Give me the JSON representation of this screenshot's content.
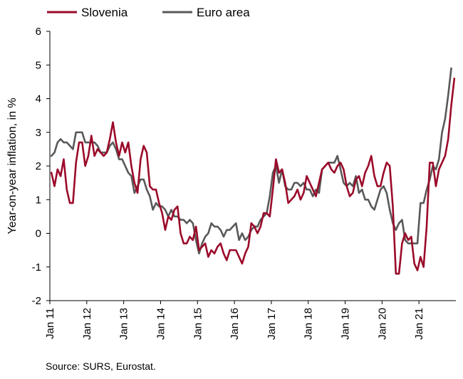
{
  "chart_data": {
    "type": "line",
    "ylabel": "Year-on-year inflation, in %",
    "ylim": [
      -2,
      6
    ],
    "yticks": [
      -2,
      -1,
      0,
      1,
      2,
      3,
      4,
      5,
      6
    ],
    "xticks": [
      "Jan 11",
      "Jan 12",
      "Jan 13",
      "Jan 14",
      "Jan 15",
      "Jan 16",
      "Jan 17",
      "Jan 18",
      "Jan 19",
      "Jan 20",
      "Jan 21"
    ],
    "x_start": "Jan 11",
    "legend_position": "top-left",
    "grid": false,
    "series": [
      {
        "name": "Slovenia",
        "color": "#9b0a2a",
        "values": [
          1.8,
          1.4,
          1.9,
          1.7,
          2.2,
          1.3,
          0.9,
          0.9,
          2.1,
          2.7,
          2.7,
          2.0,
          2.3,
          2.9,
          2.3,
          2.5,
          2.4,
          2.3,
          2.4,
          2.8,
          3.3,
          2.7,
          2.3,
          2.7,
          2.4,
          2.7,
          2.0,
          1.5,
          1.2,
          2.2,
          2.6,
          2.4,
          1.4,
          1.3,
          1.3,
          0.9,
          0.6,
          0.1,
          0.5,
          0.4,
          0.7,
          0.8,
          0.0,
          -0.3,
          -0.3,
          -0.1,
          -0.2,
          0.2,
          -0.5,
          -0.4,
          -0.3,
          -0.7,
          -0.5,
          -0.6,
          -0.4,
          -0.3,
          -0.6,
          -0.8,
          -0.5,
          -0.5,
          -0.5,
          -0.7,
          -0.9,
          -0.6,
          -0.4,
          0.3,
          0.2,
          0.0,
          0.2,
          0.6,
          0.6,
          0.5,
          1.3,
          2.2,
          1.8,
          1.9,
          1.5,
          0.9,
          1.0,
          1.1,
          1.3,
          1.0,
          1.2,
          1.7,
          1.5,
          1.3,
          1.1,
          1.5,
          1.9,
          2.0,
          2.1,
          1.9,
          1.8,
          2.0,
          2.1,
          1.9,
          1.4,
          1.1,
          1.2,
          1.6,
          1.7,
          1.4,
          1.8,
          2.0,
          2.3,
          1.7,
          1.4,
          1.4,
          1.8,
          2.1,
          2.0,
          0.8,
          -1.2,
          -1.2,
          -0.3,
          0.0,
          -0.2,
          -0.1,
          -0.9,
          -1.1,
          -0.7,
          -1.0,
          0.2,
          2.1,
          2.1,
          1.4,
          1.9,
          2.1,
          2.3,
          2.8,
          3.8,
          4.6
        ]
      },
      {
        "name": "Euro area",
        "color": "#595959",
        "values": [
          2.3,
          2.4,
          2.7,
          2.8,
          2.7,
          2.7,
          2.6,
          2.5,
          3.0,
          3.0,
          3.0,
          2.7,
          2.7,
          2.7,
          2.7,
          2.6,
          2.4,
          2.4,
          2.4,
          2.6,
          2.7,
          2.5,
          2.2,
          2.2,
          2.0,
          1.8,
          1.7,
          1.2,
          1.4,
          1.6,
          1.6,
          1.3,
          1.1,
          0.7,
          0.9,
          0.8,
          0.8,
          0.7,
          0.5,
          0.7,
          0.5,
          0.5,
          0.4,
          0.4,
          0.3,
          0.4,
          0.3,
          -0.2,
          -0.6,
          -0.3,
          -0.1,
          0.0,
          0.3,
          0.2,
          0.2,
          0.1,
          -0.1,
          0.1,
          0.1,
          0.2,
          0.3,
          -0.2,
          0.0,
          -0.2,
          -0.1,
          0.1,
          0.2,
          0.2,
          0.4,
          0.5,
          0.6,
          1.1,
          1.8,
          2.0,
          1.5,
          1.9,
          1.4,
          1.3,
          1.3,
          1.5,
          1.5,
          1.4,
          1.5,
          1.3,
          1.3,
          1.1,
          1.3,
          1.2,
          1.9,
          2.0,
          2.1,
          2.1,
          2.1,
          2.3,
          1.9,
          1.5,
          1.4,
          1.5,
          1.4,
          1.7,
          1.2,
          1.3,
          1.0,
          1.0,
          0.8,
          0.7,
          1.0,
          1.3,
          1.4,
          1.2,
          0.7,
          0.3,
          0.1,
          0.3,
          0.4,
          -0.2,
          -0.3,
          -0.3,
          -0.3,
          -0.3,
          0.9,
          0.9,
          1.3,
          1.6,
          2.0,
          1.9,
          2.2,
          3.0,
          3.4,
          4.1,
          4.9
        ]
      }
    ]
  },
  "source_note": "Source: SURS, Eurostat."
}
